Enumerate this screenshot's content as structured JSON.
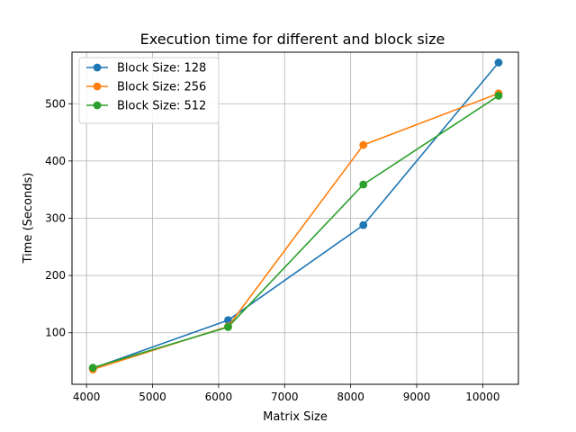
{
  "chart_data": {
    "type": "line",
    "title": "Execution time for different  and block size",
    "xlabel": "Matrix Size",
    "ylabel": "Time (Seconds)",
    "xlim": [
      3780,
      10540
    ],
    "ylim": [
      10,
      590
    ],
    "xticks": [
      4000,
      5000,
      6000,
      7000,
      8000,
      9000,
      10000
    ],
    "yticks": [
      100,
      200,
      300,
      400,
      500
    ],
    "grid": true,
    "legend_position": "top-left",
    "x": [
      4096,
      6144,
      8192,
      10240
    ],
    "series": [
      {
        "name": "Block Size: 128",
        "color": "#1f77b4",
        "values": [
          38,
          122,
          288,
          572
        ]
      },
      {
        "name": "Block Size: 256",
        "color": "#ff7f0e",
        "values": [
          36,
          111,
          428,
          518
        ]
      },
      {
        "name": "Block Size: 512",
        "color": "#2ca02c",
        "values": [
          39,
          110,
          359,
          514
        ]
      }
    ]
  }
}
